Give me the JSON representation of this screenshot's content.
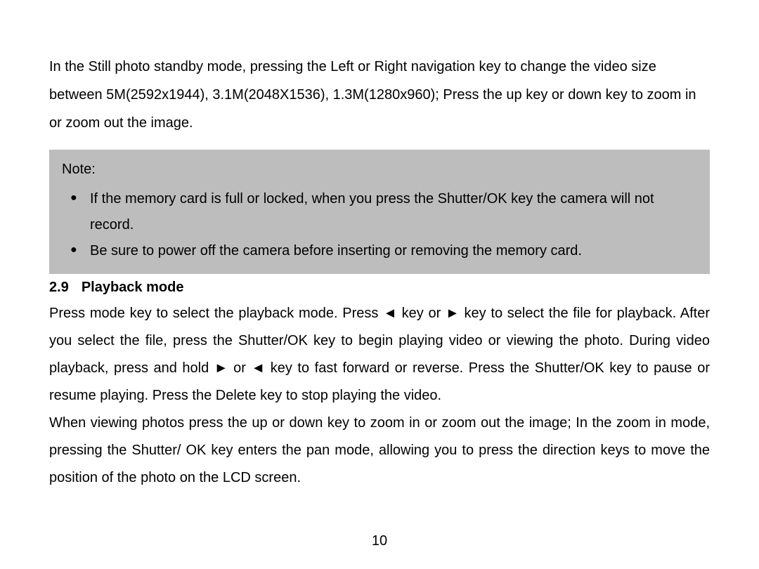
{
  "intro": {
    "text": "In the Still photo standby mode, pressing the Left or Right navigation key to change the video size between 5M(2592x1944), 3.1M(2048X1536), 1.3M(1280x960); Press the up key or down key to zoom in or zoom out the image."
  },
  "note": {
    "label": "Note:",
    "items": [
      "If the memory card is full or locked, when you press the Shutter/OK key the camera will not record.",
      "Be sure to power off the camera before inserting or removing the memory card."
    ]
  },
  "section": {
    "number": "2.9",
    "title": "Playback mode",
    "para1": "Press mode key to select the playback mode. Press ◄ key or ► key to select the file for playback. After you select the file, press the Shutter/OK key to begin playing video or viewing the photo. During video playback, press and hold ► or ◄ key to fast forward or reverse. Press the Shutter/OK key to pause or resume playing. Press the Delete key to stop playing the video.",
    "para2": "When viewing photos press the up or down key to zoom in or zoom out the image; In the zoom in mode, pressing the Shutter/ OK key enters the pan mode, allowing you to press the direction keys to move the position of the photo on the LCD screen."
  },
  "page_number": "10",
  "colors": {
    "background": "#ffffff",
    "text": "#000000",
    "note_background": "#bdbdbd"
  },
  "typography": {
    "body_fontsize": 20,
    "line_height": 2.0,
    "font_family": "Arial"
  }
}
